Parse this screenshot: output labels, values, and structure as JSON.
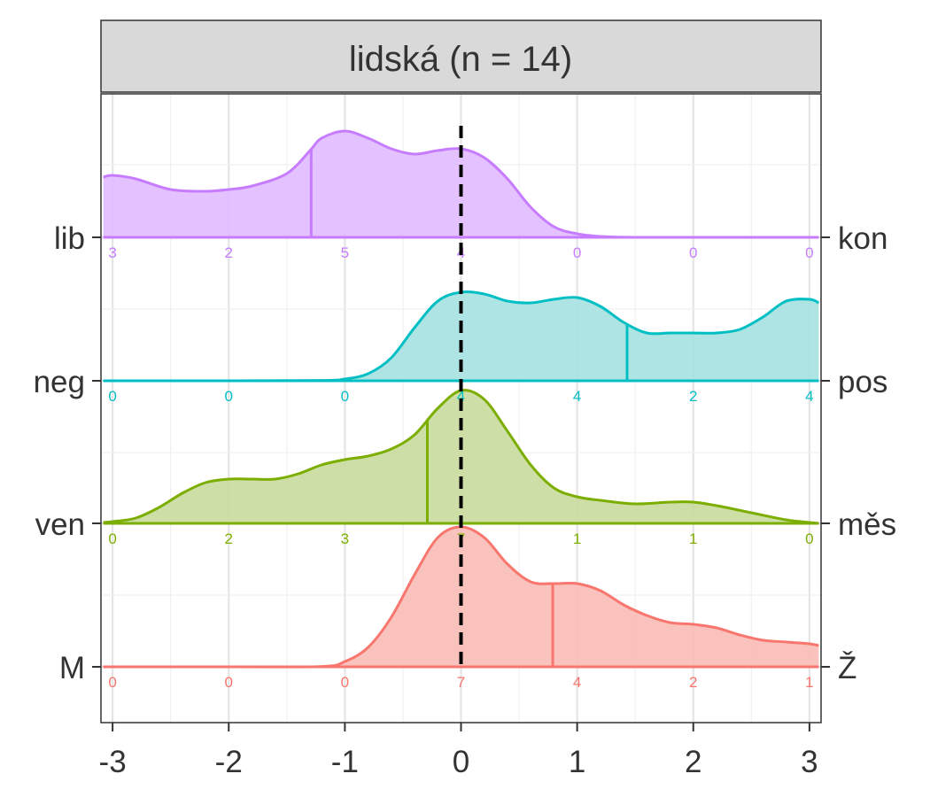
{
  "chart_data": {
    "type": "ridgeline-density",
    "title": "lidská (n = 14)",
    "xlabel": "",
    "ylabel": "",
    "xlim": [
      -3.1,
      3.1
    ],
    "x_ticks": [
      -3,
      -2,
      -1,
      0,
      1,
      2,
      3
    ],
    "x_tick_labels": [
      "-3",
      "-2",
      "-1",
      "0",
      "1",
      "2",
      "3"
    ],
    "reference_line_x": 0,
    "grid": true,
    "series": [
      {
        "left_label": "lib",
        "right_label": "kon",
        "color": "#C77CFF",
        "fill": "#E0BBFF",
        "mean": -1.29,
        "counts": [
          3,
          2,
          5,
          4,
          0,
          0,
          0
        ],
        "density_x": [
          -3.08,
          -3,
          -2.8,
          -2.5,
          -2.2,
          -2,
          -1.8,
          -1.5,
          -1.3,
          -1.2,
          -1,
          -0.8,
          -0.6,
          -0.4,
          -0.2,
          0,
          0.2,
          0.4,
          0.6,
          0.8,
          1,
          1.2,
          1.5,
          2,
          2.5,
          3,
          3.08
        ],
        "density_y": [
          0.34,
          0.35,
          0.33,
          0.27,
          0.26,
          0.27,
          0.29,
          0.36,
          0.49,
          0.56,
          0.6,
          0.56,
          0.5,
          0.47,
          0.49,
          0.5,
          0.45,
          0.33,
          0.17,
          0.06,
          0.02,
          0.005,
          0,
          0,
          0,
          0,
          0
        ]
      },
      {
        "left_label": "neg",
        "right_label": "pos",
        "color": "#00BFC4",
        "fill": "#A6E1E1",
        "mean": 1.43,
        "counts": [
          0,
          0,
          0,
          4,
          4,
          2,
          4
        ],
        "density_x": [
          -3.08,
          -2,
          -1.2,
          -1,
          -0.8,
          -0.6,
          -0.4,
          -0.2,
          0,
          0.2,
          0.4,
          0.6,
          0.8,
          1,
          1.2,
          1.4,
          1.6,
          1.8,
          2,
          2.2,
          2.4,
          2.6,
          2.8,
          3,
          3.08
        ],
        "density_y": [
          0,
          0,
          0.002,
          0.01,
          0.04,
          0.13,
          0.3,
          0.45,
          0.5,
          0.49,
          0.45,
          0.44,
          0.46,
          0.47,
          0.42,
          0.33,
          0.27,
          0.27,
          0.27,
          0.27,
          0.29,
          0.36,
          0.45,
          0.46,
          0.44
        ]
      },
      {
        "left_label": "ven",
        "right_label": "měs",
        "color": "#7CAE00",
        "fill": "#C8DC9D",
        "mean": -0.29,
        "counts": [
          0,
          2,
          3,
          7,
          1,
          1,
          0
        ],
        "density_x": [
          -3.08,
          -3,
          -2.8,
          -2.6,
          -2.4,
          -2.2,
          -2,
          -1.8,
          -1.6,
          -1.4,
          -1.2,
          -1,
          -0.8,
          -0.6,
          -0.4,
          -0.2,
          0,
          0.2,
          0.4,
          0.6,
          0.8,
          1,
          1.2,
          1.5,
          1.8,
          2,
          2.2,
          2.5,
          2.8,
          3,
          3.08
        ],
        "density_y": [
          0.005,
          0.01,
          0.03,
          0.09,
          0.17,
          0.23,
          0.25,
          0.25,
          0.25,
          0.28,
          0.33,
          0.36,
          0.38,
          0.42,
          0.5,
          0.65,
          0.75,
          0.7,
          0.52,
          0.33,
          0.2,
          0.15,
          0.13,
          0.11,
          0.12,
          0.12,
          0.1,
          0.06,
          0.02,
          0.005,
          0
        ]
      },
      {
        "left_label": "M",
        "right_label": "Ž",
        "color": "#F8766D",
        "fill": "#F9BBB6",
        "mean": 0.79,
        "counts": [
          0,
          0,
          0,
          7,
          4,
          2,
          1
        ],
        "density_x": [
          -3.08,
          -2,
          -1.2,
          -1,
          -0.8,
          -0.6,
          -0.4,
          -0.2,
          0,
          0.2,
          0.4,
          0.6,
          0.8,
          1,
          1.2,
          1.4,
          1.6,
          1.8,
          2,
          2.2,
          2.4,
          2.6,
          2.8,
          3,
          3.08
        ],
        "density_y": [
          0,
          0,
          0.002,
          0.03,
          0.11,
          0.28,
          0.52,
          0.73,
          0.79,
          0.73,
          0.58,
          0.48,
          0.47,
          0.47,
          0.43,
          0.35,
          0.29,
          0.25,
          0.24,
          0.22,
          0.18,
          0.15,
          0.14,
          0.13,
          0.12
        ]
      }
    ]
  }
}
